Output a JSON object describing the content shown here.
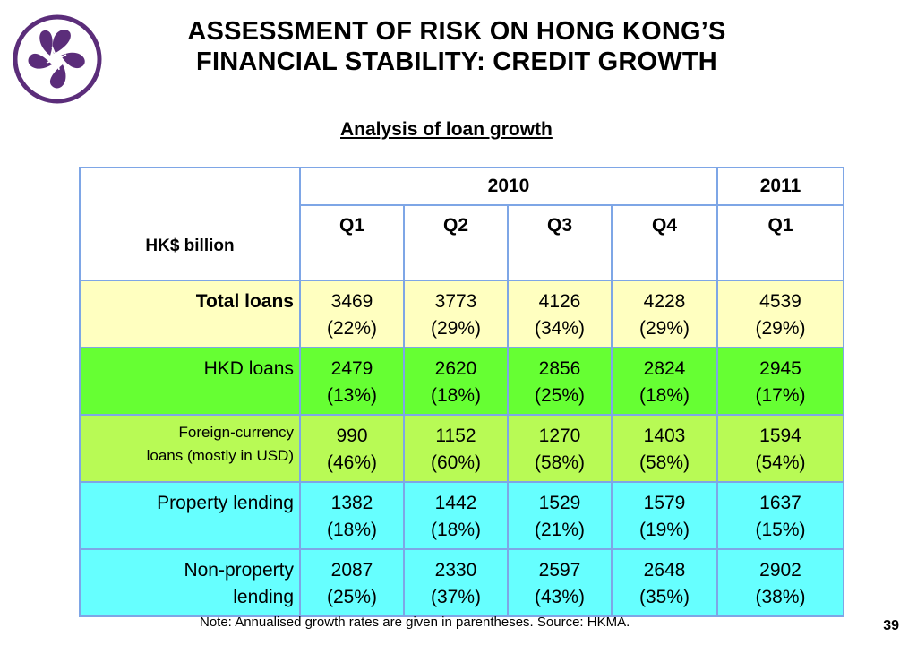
{
  "title": {
    "line1": "ASSESSMENT OF RISK ON HONG KONG’S",
    "line2": "FINANCIAL STABILITY: CREDIT GROWTH"
  },
  "subtitle": "Analysis of loan growth",
  "table": {
    "unit_label": "HK$ billion",
    "years": [
      "2010",
      "2011"
    ],
    "quarters": [
      "Q1",
      "Q2",
      "Q3",
      "Q4",
      "Q1"
    ],
    "rows": [
      {
        "label": "Total loans",
        "cells": [
          [
            "3469",
            "(22%)"
          ],
          [
            "3773",
            "(29%)"
          ],
          [
            "4126",
            "(34%)"
          ],
          [
            "4228",
            "(29%)"
          ],
          [
            "4539",
            "(29%)"
          ]
        ]
      },
      {
        "label": "HKD loans",
        "cells": [
          [
            "2479",
            "(13%)"
          ],
          [
            "2620",
            "(18%)"
          ],
          [
            "2856",
            "(25%)"
          ],
          [
            "2824",
            "(18%)"
          ],
          [
            "2945",
            "(17%)"
          ]
        ]
      },
      {
        "label_line1": "Foreign-currency",
        "label_line2": "loans (mostly in USD)",
        "cells": [
          [
            "990",
            "(46%)"
          ],
          [
            "1152",
            "(60%)"
          ],
          [
            "1270",
            "(58%)"
          ],
          [
            "1403",
            "(58%)"
          ],
          [
            "1594",
            "(54%)"
          ]
        ]
      },
      {
        "label": "Property lending",
        "cells": [
          [
            "1382",
            "(18%)"
          ],
          [
            "1442",
            "(18%)"
          ],
          [
            "1529",
            "(21%)"
          ],
          [
            "1579",
            "(19%)"
          ],
          [
            "1637",
            "(15%)"
          ]
        ]
      },
      {
        "label_line1": "Non-property",
        "label_line2": "lending",
        "cells": [
          [
            "2087",
            "(25%)"
          ],
          [
            "2330",
            "(37%)"
          ],
          [
            "2597",
            "(43%)"
          ],
          [
            "2648",
            "(35%)"
          ],
          [
            "2902",
            "(38%)"
          ]
        ]
      }
    ]
  },
  "note": "Note: Annualised growth rates are given in parentheses.  Source: HKMA.",
  "page_number": "39",
  "colors": {
    "logo": "#5b2d7a",
    "table_border": "#7ea6e6",
    "total_loans_bg": "#ffffc0",
    "hkd_loans_bg": "#66ff33",
    "fx_loans_bg": "#b8fa55",
    "property_bg": "#66ffff"
  },
  "icons": {
    "logo": "bauhinia-flower-emblem"
  }
}
